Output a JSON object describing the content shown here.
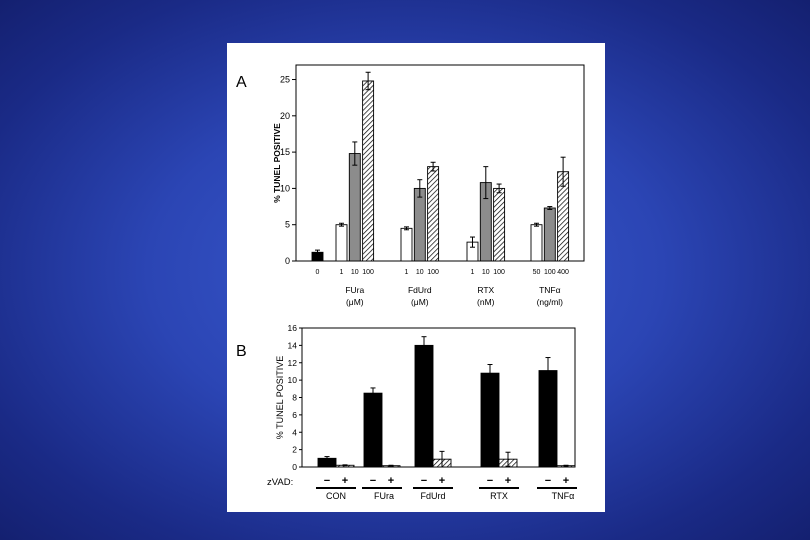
{
  "chart_data": [
    {
      "panel": "A",
      "type": "bar",
      "ylabel": "% TUNEL POSITIVE",
      "ylim": [
        0,
        27
      ],
      "yticks": [
        0,
        5,
        10,
        15,
        20,
        25
      ],
      "groups": [
        {
          "label": "",
          "unit": "",
          "bars": [
            {
              "dose": "0",
              "value": 1.2,
              "error": 0.3,
              "style": "black"
            }
          ]
        },
        {
          "label": "FUra",
          "unit": "(μM)",
          "bars": [
            {
              "dose": "1",
              "value": 5.0,
              "error": 0.2,
              "style": "white"
            },
            {
              "dose": "10",
              "value": 14.8,
              "error": 1.6,
              "style": "gray"
            },
            {
              "dose": "100",
              "value": 24.8,
              "error": 1.2,
              "style": "hatched"
            }
          ]
        },
        {
          "label": "FdUrd",
          "unit": "(μM)",
          "bars": [
            {
              "dose": "1",
              "value": 4.5,
              "error": 0.2,
              "style": "white"
            },
            {
              "dose": "10",
              "value": 10.0,
              "error": 1.2,
              "style": "gray"
            },
            {
              "dose": "100",
              "value": 13.0,
              "error": 0.6,
              "style": "hatched"
            }
          ]
        },
        {
          "label": "RTX",
          "unit": "(nM)",
          "bars": [
            {
              "dose": "1",
              "value": 2.6,
              "error": 0.7,
              "style": "white"
            },
            {
              "dose": "10",
              "value": 10.8,
              "error": 2.2,
              "style": "gray"
            },
            {
              "dose": "100",
              "value": 10.0,
              "error": 0.6,
              "style": "hatched"
            }
          ]
        },
        {
          "label": "TNFα",
          "unit": "(ng/ml)",
          "bars": [
            {
              "dose": "50",
              "value": 5.0,
              "error": 0.2,
              "style": "white"
            },
            {
              "dose": "100",
              "value": 7.3,
              "error": 0.2,
              "style": "gray"
            },
            {
              "dose": "400",
              "value": 12.3,
              "error": 2.0,
              "style": "hatched"
            }
          ]
        }
      ]
    },
    {
      "panel": "B",
      "type": "bar",
      "ylabel": "% TUNEL POSITIVE",
      "ylim": [
        0,
        16
      ],
      "yticks": [
        0,
        2,
        4,
        6,
        8,
        10,
        12,
        14,
        16
      ],
      "zvad_label": "zVAD:",
      "minus_sign": "−",
      "plus_sign": "+",
      "groups": [
        {
          "label": "CON",
          "bars": [
            {
              "zvad": "−",
              "value": 1.0,
              "error": 0.2,
              "style": "black"
            },
            {
              "zvad": "+",
              "value": 0.2,
              "error": 0.05,
              "style": "hatched"
            }
          ]
        },
        {
          "label": "FUra",
          "bars": [
            {
              "zvad": "−",
              "value": 8.5,
              "error": 0.6,
              "style": "black"
            },
            {
              "zvad": "+",
              "value": 0.15,
              "error": 0.05,
              "style": "hatched"
            }
          ]
        },
        {
          "label": "FdUrd",
          "bars": [
            {
              "zvad": "−",
              "value": 14.0,
              "error": 1.0,
              "style": "black"
            },
            {
              "zvad": "+",
              "value": 0.9,
              "error": 0.9,
              "style": "hatched"
            }
          ]
        },
        {
          "label": "RTX",
          "bars": [
            {
              "zvad": "−",
              "value": 10.8,
              "error": 1.0,
              "style": "black"
            },
            {
              "zvad": "+",
              "value": 0.9,
              "error": 0.8,
              "style": "hatched"
            }
          ]
        },
        {
          "label": "TNFα",
          "bars": [
            {
              "zvad": "−",
              "value": 11.1,
              "error": 1.5,
              "style": "black"
            },
            {
              "zvad": "+",
              "value": 0.15,
              "error": 0.05,
              "style": "hatched"
            }
          ]
        }
      ]
    }
  ],
  "colors": {
    "black": "#000000",
    "white": "#ffffff",
    "gray": "#8c8c8c",
    "stroke": "#000000"
  }
}
